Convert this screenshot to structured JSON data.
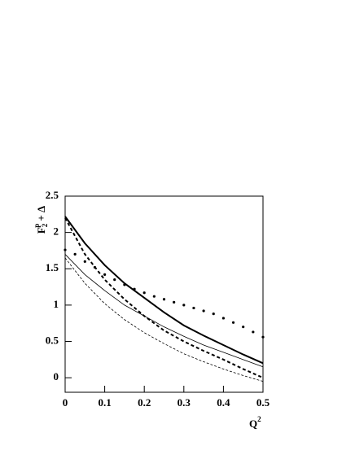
{
  "chart_data": {
    "type": "line",
    "y_label": {
      "main": "F",
      "sup": "p",
      "sub": "2",
      "rest": "+ Δ"
    },
    "x_label": {
      "main": "Q",
      "sup": "2"
    },
    "xlim": [
      0,
      0.5
    ],
    "xticks": [
      0,
      0.1,
      0.2,
      0.3,
      0.4,
      0.5
    ],
    "ylim": [
      -0.2,
      2.5
    ],
    "yticks": [
      0,
      0.5,
      1,
      1.5,
      2,
      2.5
    ],
    "series": [
      {
        "style": "solid",
        "line_width": 2,
        "color": "#000000",
        "x": [
          0,
          0.05,
          0.1,
          0.15,
          0.2,
          0.25,
          0.3,
          0.35,
          0.4,
          0.45,
          0.5
        ],
        "values": [
          2.22,
          1.85,
          1.55,
          1.3,
          1.1,
          0.9,
          0.72,
          0.58,
          0.45,
          0.32,
          0.2
        ]
      },
      {
        "style": "dashed",
        "line_width": 2,
        "color": "#000000",
        "x": [
          0,
          0.05,
          0.1,
          0.15,
          0.2,
          0.25,
          0.3,
          0.35,
          0.4,
          0.45,
          0.5
        ],
        "values": [
          2.2,
          1.7,
          1.35,
          1.08,
          0.85,
          0.65,
          0.5,
          0.37,
          0.25,
          0.12,
          0.0
        ]
      },
      {
        "style": "solid",
        "line_width": 0.8,
        "color": "#000000",
        "x": [
          0,
          0.05,
          0.1,
          0.15,
          0.2,
          0.25,
          0.3,
          0.35,
          0.4,
          0.45,
          0.5
        ],
        "values": [
          1.7,
          1.42,
          1.2,
          1.0,
          0.85,
          0.7,
          0.57,
          0.45,
          0.35,
          0.25,
          0.15
        ]
      },
      {
        "style": "dashed",
        "line_width": 0.8,
        "color": "#000000",
        "x": [
          0,
          0.05,
          0.1,
          0.15,
          0.2,
          0.25,
          0.3,
          0.35,
          0.4,
          0.45,
          0.5
        ],
        "values": [
          1.65,
          1.3,
          1.02,
          0.8,
          0.62,
          0.47,
          0.33,
          0.22,
          0.12,
          0.03,
          -0.05
        ]
      },
      {
        "style": "dots",
        "line_width": 1.6,
        "color": "#000000",
        "x": [
          0,
          0.025,
          0.05,
          0.075,
          0.1,
          0.125,
          0.15,
          0.175,
          0.2,
          0.225,
          0.25,
          0.275,
          0.3,
          0.325,
          0.35,
          0.375,
          0.4,
          0.425,
          0.45,
          0.475,
          0.5
        ],
        "values": [
          1.76,
          1.7,
          1.6,
          1.52,
          1.42,
          1.35,
          1.28,
          1.22,
          1.17,
          1.12,
          1.08,
          1.04,
          1.0,
          0.96,
          0.92,
          0.88,
          0.82,
          0.76,
          0.7,
          0.63,
          0.56
        ]
      }
    ]
  }
}
